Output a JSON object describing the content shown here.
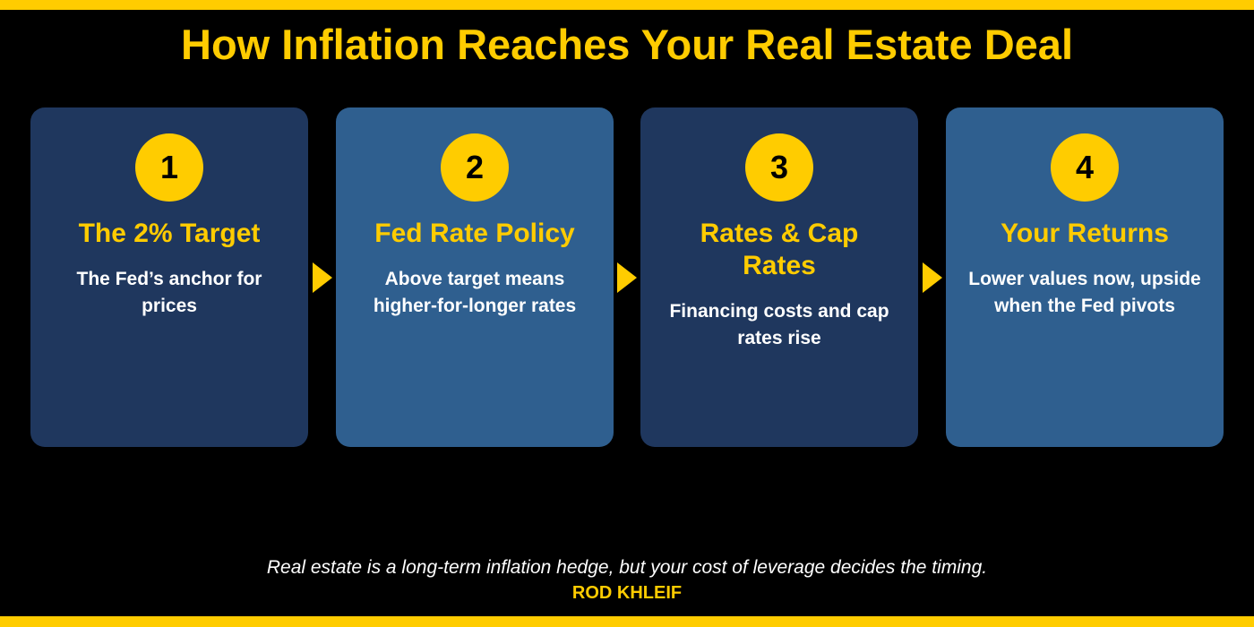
{
  "title": "How Inflation Reaches Your Real Estate Deal",
  "steps": [
    {
      "number": "1",
      "title": "The 2% Target",
      "description": "The Fed’s anchor for prices"
    },
    {
      "number": "2",
      "title": "Fed Rate Policy",
      "description": "Above target means higher-for-longer rates"
    },
    {
      "number": "3",
      "title": "Rates & Cap Rates",
      "description": "Financing costs and cap rates rise"
    },
    {
      "number": "4",
      "title": "Your Returns",
      "description": "Lower values now, upside when the Fed pivots"
    }
  ],
  "footer": {
    "quote": "Real estate is a long-term inflation hedge, but your cost of leverage decides the timing.",
    "author": "ROD KHLEIF"
  },
  "colors": {
    "accent": "#FFCC00",
    "background": "#000000",
    "card_dark": "#1F375E",
    "card_light": "#2F5F8F",
    "text": "#FFFFFF"
  }
}
